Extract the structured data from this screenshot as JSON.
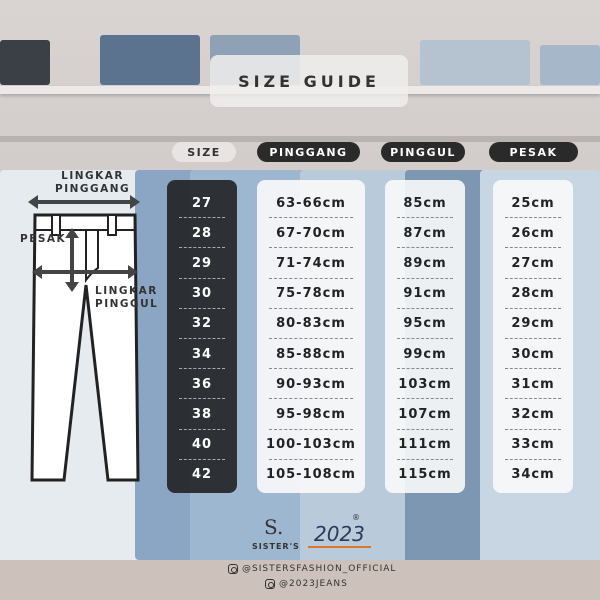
{
  "title": "SIZE GUIDE",
  "headers": {
    "size": "SIZE",
    "pinggang": "PINGGANG",
    "pinggul": "PINGGUL",
    "pesak": "PESAK"
  },
  "rows": [
    {
      "size": "27",
      "pinggang": "63-66cm",
      "pinggul": "85cm",
      "pesak": "25cm"
    },
    {
      "size": "28",
      "pinggang": "67-70cm",
      "pinggul": "87cm",
      "pesak": "26cm"
    },
    {
      "size": "29",
      "pinggang": "71-74cm",
      "pinggul": "89cm",
      "pesak": "27cm"
    },
    {
      "size": "30",
      "pinggang": "75-78cm",
      "pinggul": "91cm",
      "pesak": "28cm"
    },
    {
      "size": "32",
      "pinggang": "80-83cm",
      "pinggul": "95cm",
      "pesak": "29cm"
    },
    {
      "size": "34",
      "pinggang": "85-88cm",
      "pinggul": "99cm",
      "pesak": "30cm"
    },
    {
      "size": "36",
      "pinggang": "90-93cm",
      "pinggul": "103cm",
      "pesak": "31cm"
    },
    {
      "size": "38",
      "pinggang": "95-98cm",
      "pinggul": "107cm",
      "pesak": "32cm"
    },
    {
      "size": "40",
      "pinggang": "100-103cm",
      "pinggul": "111cm",
      "pesak": "33cm"
    },
    {
      "size": "42",
      "pinggang": "105-108cm",
      "pinggul": "115cm",
      "pesak": "34cm"
    }
  ],
  "diagram": {
    "waist": "LINGKAR\nPINGGANG",
    "crotch": "PESAK",
    "hip": "LINGKAR\nPINGGUL"
  },
  "brand": {
    "mark": "S.",
    "name": "SISTER'S",
    "year": "2023",
    "registered": "®"
  },
  "social": [
    "@SISTERSFASHION_OFFICIAL",
    "@2023JEANS"
  ],
  "icons": {
    "social": "instagram-icon"
  },
  "colors": {
    "dark_column": "#1e1e1e",
    "accent_underline": "#d9772f",
    "brand_year": "#2c3a5c"
  }
}
